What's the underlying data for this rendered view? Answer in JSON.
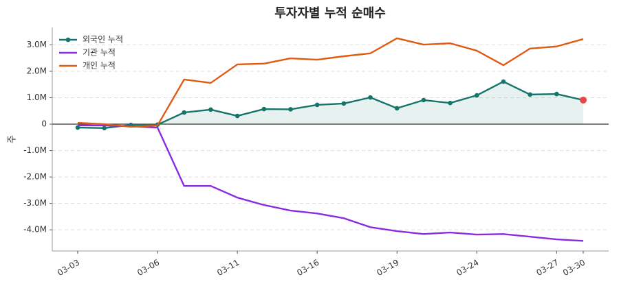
{
  "chart_data": {
    "type": "line",
    "title": "투자자별 누적 순매수",
    "y_label": "주",
    "categories": [
      "03-03",
      null,
      null,
      "03-06",
      null,
      null,
      "03-11",
      null,
      null,
      "03-16",
      null,
      null,
      "03-19",
      null,
      null,
      "03-24",
      null,
      null,
      "03-27",
      "03-30"
    ],
    "series": [
      {
        "name": "외국인 누적",
        "color": "#16756b",
        "markers": true,
        "fill": true,
        "last_point_color": "#e84545",
        "values": [
          -130000,
          -150000,
          -30000,
          -20000,
          440000,
          550000,
          310000,
          570000,
          560000,
          730000,
          780000,
          1010000,
          600000,
          910000,
          800000,
          1090000,
          1610000,
          1120000,
          1140000,
          910000
        ]
      },
      {
        "name": "기관 누적",
        "color": "#8a2be2",
        "values": [
          -50000,
          -50000,
          -80000,
          -130000,
          -2340000,
          -2340000,
          -2780000,
          -3060000,
          -3270000,
          -3380000,
          -3560000,
          -3900000,
          -4050000,
          -4160000,
          -4100000,
          -4180000,
          -4160000,
          -4260000,
          -4360000,
          -4420000
        ]
      },
      {
        "name": "개인 누적",
        "color": "#e05a10",
        "values": [
          50000,
          0,
          -100000,
          -50000,
          1690000,
          1560000,
          2260000,
          2290000,
          2490000,
          2440000,
          2570000,
          2680000,
          3250000,
          3010000,
          3060000,
          2780000,
          2230000,
          2860000,
          2940000,
          3220000
        ]
      }
    ],
    "ylim": [
      -4800000,
      3660000
    ],
    "yticks": [
      {
        "value": -4000000,
        "label": "-4.0M"
      },
      {
        "value": -3000000,
        "label": "-3.0M"
      },
      {
        "value": -2000000,
        "label": "-2.0M"
      },
      {
        "value": -1000000,
        "label": "-1.0M"
      },
      0,
      {
        "value": 1000000,
        "label": "1.0M"
      },
      {
        "value": 2000000,
        "label": "2.0M"
      },
      {
        "value": 3000000,
        "label": "3.0M"
      }
    ],
    "grid": true,
    "legend": "upper left"
  }
}
